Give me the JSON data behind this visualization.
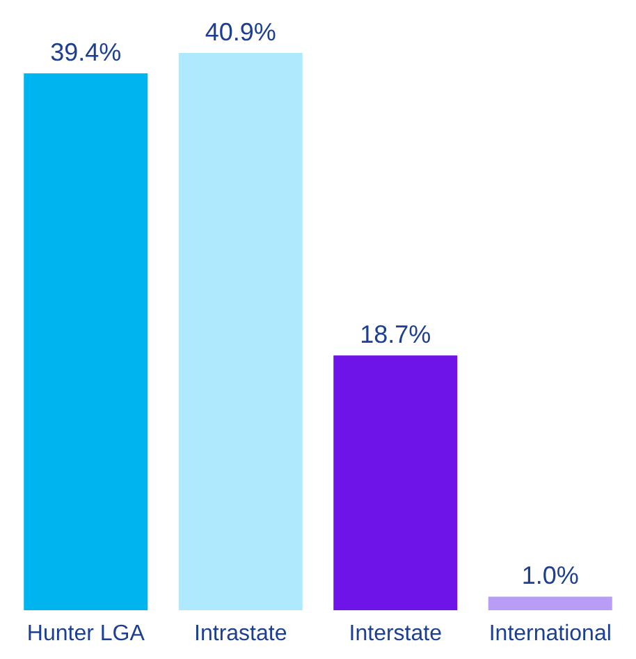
{
  "chart_data": {
    "type": "bar",
    "categories": [
      "Hunter LGA",
      "Intrastate",
      "Interstate",
      "International"
    ],
    "values": [
      39.4,
      40.9,
      18.7,
      1.0
    ],
    "colors": [
      "#00b4f0",
      "#aee9fd",
      "#6e14e8",
      "#b89cf6"
    ],
    "value_labels": [
      "39.4%",
      "40.9%",
      "18.7%",
      "1.0%"
    ]
  }
}
